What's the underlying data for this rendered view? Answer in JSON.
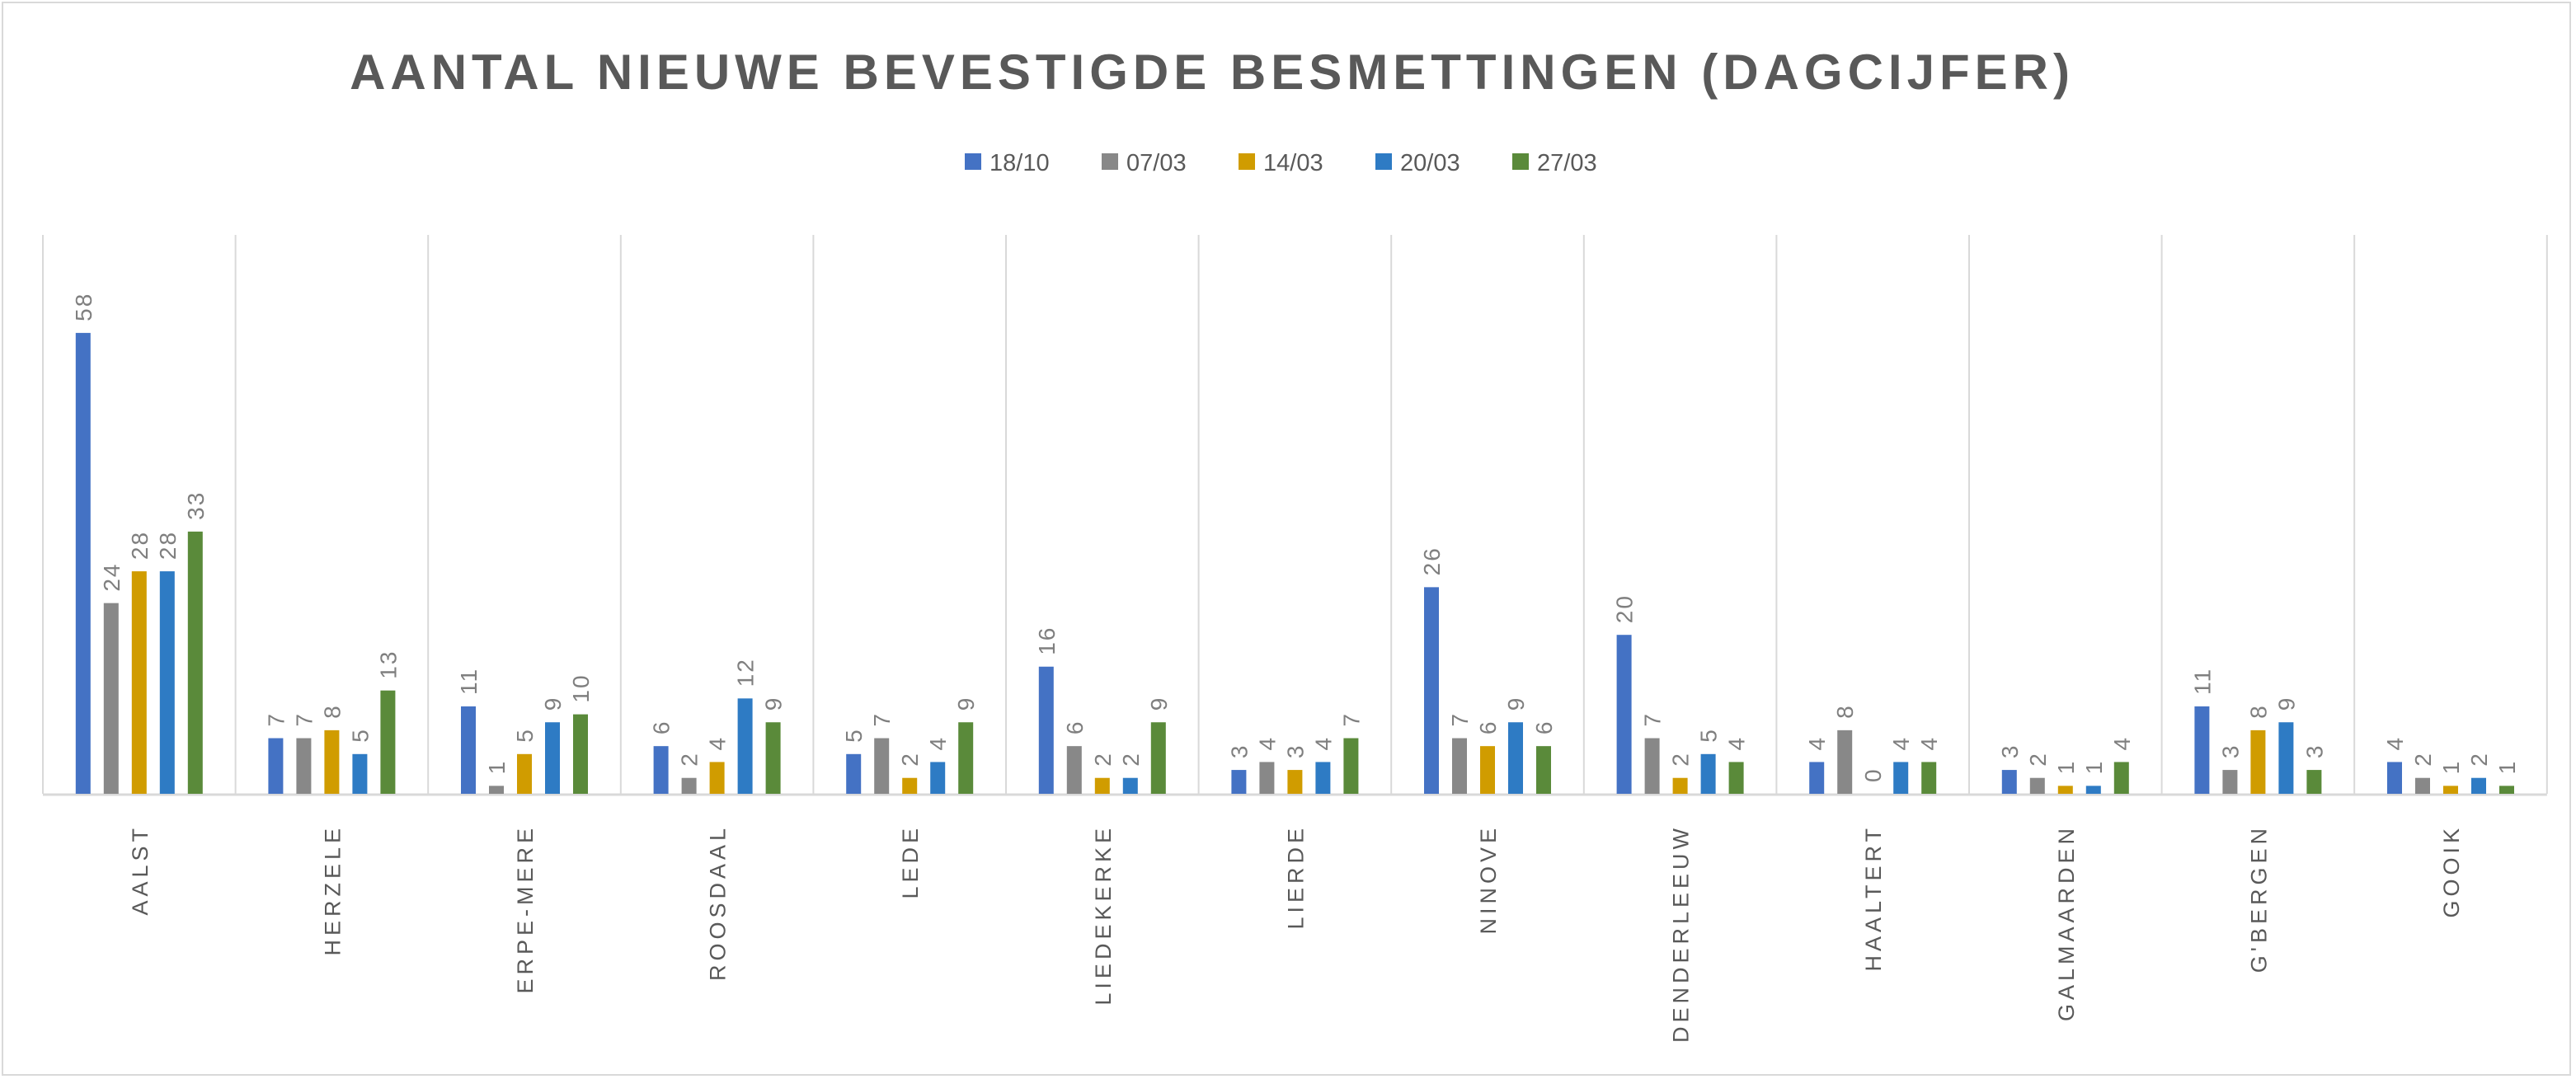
{
  "chart_data": {
    "type": "bar",
    "title": "AANTAL NIEUWE BEVESTIGDE BESMETTINGEN (DAGCIJFER)",
    "xlabel": "",
    "ylabel": "",
    "ylim": [
      0,
      60
    ],
    "grid": "vertical category separators",
    "legend_position": "top",
    "categories": [
      "AALST",
      "HERZELE",
      "ERPE-MERE",
      "ROOSDAAL",
      "LEDE",
      "LIEDEKERKE",
      "LIERDE",
      "NINOVE",
      "DENDERLEEUW",
      "HAALTERT",
      "GALMAARDEN",
      "G'BERGEN",
      "GOOIK"
    ],
    "series": [
      {
        "name": "18/10",
        "color": "#4472c4",
        "values": [
          58,
          7,
          11,
          6,
          5,
          16,
          3,
          26,
          20,
          4,
          3,
          11,
          4
        ]
      },
      {
        "name": "07/03",
        "color": "#888888",
        "values": [
          24,
          7,
          1,
          2,
          7,
          6,
          4,
          7,
          7,
          8,
          2,
          3,
          2
        ]
      },
      {
        "name": "14/03",
        "color": "#d09c00",
        "values": [
          28,
          8,
          5,
          4,
          2,
          2,
          3,
          6,
          2,
          0,
          1,
          8,
          1
        ]
      },
      {
        "name": "20/03",
        "color": "#2e7bc4",
        "values": [
          28,
          5,
          9,
          12,
          4,
          2,
          4,
          9,
          5,
          4,
          1,
          9,
          2
        ]
      },
      {
        "name": "27/03",
        "color": "#5a8a3a",
        "values": [
          33,
          13,
          10,
          9,
          9,
          9,
          7,
          6,
          4,
          4,
          4,
          3,
          1
        ]
      }
    ]
  }
}
